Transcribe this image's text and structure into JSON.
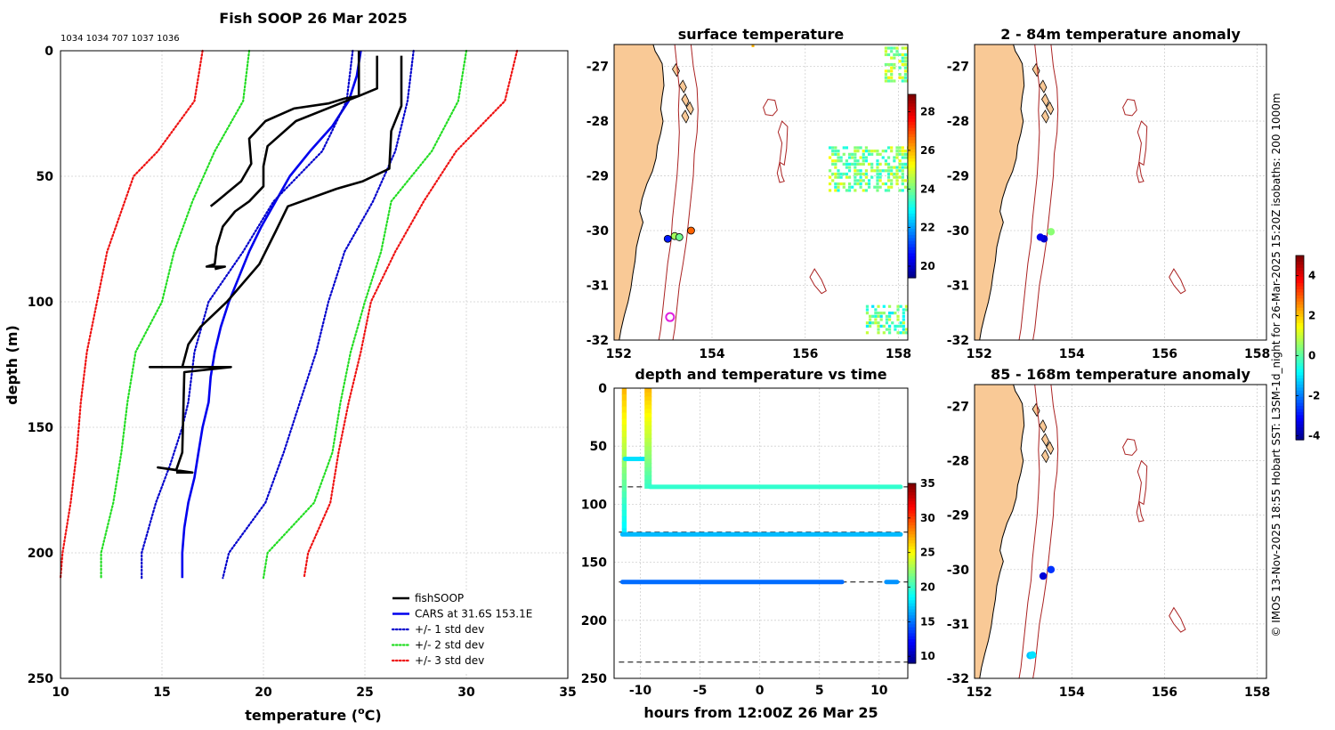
{
  "colors": {
    "fishsoop": "#000000",
    "cars": "#0000ee",
    "std1": "#0000cc",
    "std2": "#22dd22",
    "std3": "#ee1111",
    "land": "#f9c996",
    "contour": "#aa2222",
    "grid": "#d0d0d0"
  },
  "chart_data": [
    {
      "type": "line",
      "title": "Fish SOOP 26 Mar 2025",
      "subtitle": "1034 1034 707 1037 1036",
      "xlabel": "temperature (",
      "xlabel_sup": "o",
      "xlabel_end": "C)",
      "ylabel": "depth (m)",
      "xlim": [
        10,
        35
      ],
      "ylim": [
        250,
        0
      ],
      "xticks": [
        "10",
        "15",
        "20",
        "25",
        "30",
        "35"
      ],
      "yticks": [
        "0",
        "50",
        "100",
        "150",
        "200",
        "250"
      ],
      "legend": [
        "fishSOOP",
        "CARS at 31.6S 153.1E",
        "+/- 1 std dev",
        "+/- 2 std dev",
        "+/- 3 std dev"
      ],
      "legend_position": "bottom-right",
      "series": [
        {
          "name": "CARS mean",
          "style": "solid",
          "color": "cars",
          "points": [
            [
              24.8,
              0
            ],
            [
              24.6,
              10
            ],
            [
              24.2,
              20
            ],
            [
              23.4,
              30
            ],
            [
              22.3,
              40
            ],
            [
              21.3,
              50
            ],
            [
              20.6,
              60
            ],
            [
              19.9,
              70
            ],
            [
              19.3,
              80
            ],
            [
              18.8,
              90
            ],
            [
              18.3,
              100
            ],
            [
              17.9,
              110
            ],
            [
              17.6,
              120
            ],
            [
              17.4,
              130
            ],
            [
              17.3,
              140
            ],
            [
              17.0,
              150
            ],
            [
              16.8,
              160
            ],
            [
              16.6,
              170
            ],
            [
              16.3,
              180
            ],
            [
              16.1,
              190
            ],
            [
              16.0,
              200
            ],
            [
              16.0,
              210
            ]
          ]
        },
        {
          "name": "+1 std",
          "style": "dotted",
          "color": "std1",
          "points": [
            [
              27.4,
              0
            ],
            [
              27.1,
              20
            ],
            [
              26.5,
              40
            ],
            [
              25.4,
              60
            ],
            [
              24.0,
              80
            ],
            [
              23.2,
              100
            ],
            [
              22.6,
              120
            ],
            [
              21.8,
              140
            ],
            [
              21.0,
              160
            ],
            [
              20.1,
              180
            ],
            [
              18.3,
              200
            ],
            [
              18.0,
              210
            ]
          ]
        },
        {
          "name": "-1 std",
          "style": "dotted",
          "color": "std1",
          "points": [
            [
              24.4,
              0
            ],
            [
              24.1,
              20
            ],
            [
              22.9,
              40
            ],
            [
              20.5,
              60
            ],
            [
              19.0,
              80
            ],
            [
              17.3,
              100
            ],
            [
              16.6,
              120
            ],
            [
              16.3,
              140
            ],
            [
              16.0,
              150
            ],
            [
              15.4,
              165
            ],
            [
              14.7,
              180
            ],
            [
              14.0,
              200
            ],
            [
              14.0,
              210
            ]
          ]
        },
        {
          "name": "+2 std",
          "style": "dotted",
          "color": "std2",
          "points": [
            [
              30.0,
              0
            ],
            [
              29.6,
              20
            ],
            [
              28.3,
              40
            ],
            [
              26.3,
              60
            ],
            [
              25.8,
              80
            ],
            [
              25.0,
              100
            ],
            [
              24.3,
              120
            ],
            [
              23.8,
              140
            ],
            [
              23.4,
              160
            ],
            [
              22.5,
              180
            ],
            [
              20.2,
              200
            ],
            [
              20.0,
              210
            ]
          ]
        },
        {
          "name": "-2 std",
          "style": "dotted",
          "color": "std2",
          "points": [
            [
              19.3,
              0
            ],
            [
              19.0,
              20
            ],
            [
              17.6,
              40
            ],
            [
              16.5,
              60
            ],
            [
              15.6,
              80
            ],
            [
              15.0,
              100
            ],
            [
              13.7,
              120
            ],
            [
              13.3,
              140
            ],
            [
              13.0,
              160
            ],
            [
              12.6,
              180
            ],
            [
              12.0,
              200
            ],
            [
              12.0,
              210
            ]
          ]
        },
        {
          "name": "+3 std",
          "style": "dotted",
          "color": "std3",
          "points": [
            [
              32.5,
              0
            ],
            [
              31.9,
              20
            ],
            [
              29.5,
              40
            ],
            [
              27.9,
              60
            ],
            [
              26.5,
              80
            ],
            [
              25.3,
              100
            ],
            [
              24.8,
              120
            ],
            [
              24.2,
              140
            ],
            [
              23.7,
              160
            ],
            [
              23.3,
              180
            ],
            [
              22.2,
              200
            ],
            [
              22.0,
              210
            ]
          ]
        },
        {
          "name": "-3 std",
          "style": "dotted",
          "color": "std3",
          "points": [
            [
              17.0,
              0
            ],
            [
              16.6,
              20
            ],
            [
              14.8,
              40
            ],
            [
              13.6,
              50
            ],
            [
              12.3,
              80
            ],
            [
              11.8,
              100
            ],
            [
              11.3,
              120
            ],
            [
              11.0,
              140
            ],
            [
              10.8,
              160
            ],
            [
              10.5,
              180
            ],
            [
              10.1,
              200
            ],
            [
              10.0,
              210
            ]
          ]
        },
        {
          "name": "fishSOOP profile 1",
          "style": "solid",
          "color": "fishsoop",
          "points": [
            [
              24.7,
              0
            ],
            [
              24.7,
              18
            ],
            [
              24.0,
              19
            ],
            [
              23.2,
              21
            ],
            [
              21.5,
              23
            ],
            [
              20.1,
              28
            ],
            [
              19.3,
              35
            ],
            [
              19.4,
              45
            ],
            [
              18.9,
              52
            ],
            [
              17.7,
              60
            ],
            [
              17.4,
              62
            ]
          ]
        },
        {
          "name": "fishSOOP profile 2",
          "style": "solid",
          "color": "fishsoop",
          "points": [
            [
              25.6,
              2
            ],
            [
              25.6,
              15
            ],
            [
              24.7,
              18
            ],
            [
              21.6,
              28
            ],
            [
              20.2,
              38
            ],
            [
              20.0,
              46
            ],
            [
              20.0,
              54
            ],
            [
              19.3,
              60
            ],
            [
              18.6,
              64
            ],
            [
              18.0,
              70
            ],
            [
              17.7,
              78
            ],
            [
              17.6,
              85
            ],
            [
              17.2,
              86
            ],
            [
              18.1,
              86
            ],
            [
              17.6,
              87
            ]
          ]
        },
        {
          "name": "fishSOOP profile 3",
          "style": "solid",
          "color": "fishsoop",
          "points": [
            [
              26.8,
              2
            ],
            [
              26.8,
              22
            ],
            [
              26.3,
              32
            ],
            [
              26.2,
              47
            ],
            [
              24.9,
              52
            ],
            [
              23.6,
              55
            ],
            [
              21.2,
              62
            ],
            [
              20.6,
              72
            ],
            [
              19.8,
              85
            ],
            [
              18.2,
              100
            ],
            [
              16.9,
              110
            ],
            [
              16.3,
              117
            ],
            [
              16.0,
              126
            ],
            [
              14.4,
              126
            ],
            [
              18.4,
              126
            ],
            [
              16.1,
              128
            ],
            [
              16.0,
              160
            ],
            [
              15.7,
              167
            ],
            [
              14.8,
              166
            ],
            [
              16.5,
              168
            ],
            [
              15.7,
              168
            ]
          ]
        }
      ]
    },
    {
      "type": "heatmap",
      "title": "surface temperature",
      "xticks": [
        "152",
        "154",
        "156",
        "158"
      ],
      "yticks": [
        "-27",
        "-28",
        "-29",
        "-30",
        "-31",
        "-32"
      ],
      "xlim": [
        151.9,
        158.2
      ],
      "ylim": [
        -32.0,
        -26.6
      ],
      "colorbar_ticks": [
        "20",
        "22",
        "24",
        "26",
        "28"
      ],
      "colorbar_range": [
        19.4,
        28.9
      ],
      "points": [
        {
          "lon": 153.2,
          "lat": -30.1,
          "value": 24.5
        },
        {
          "lon": 153.3,
          "lat": -30.12,
          "value": 24.0
        },
        {
          "lon": 153.55,
          "lat": -30.0,
          "value": 26.8
        },
        {
          "lon": 153.05,
          "lat": -30.15,
          "value": 20.8
        },
        {
          "lon": 153.1,
          "lat": -31.58,
          "value": 0,
          "marker": "magenta ring"
        }
      ],
      "sst_patches": [
        {
          "lon": [
            157.7,
            158.2
          ],
          "lat": [
            -27.3,
            -26.7
          ],
          "value": 24.5
        },
        {
          "lon": [
            156.5,
            158.2
          ],
          "lat": [
            -29.3,
            -28.5
          ],
          "value": 24.2
        },
        {
          "lon": [
            157.3,
            158.2
          ],
          "lat": [
            -31.9,
            -31.4
          ],
          "value": 23.8
        }
      ]
    },
    {
      "type": "scatter",
      "title": "2 - 84m temperature anomaly",
      "xticks": [
        "152",
        "154",
        "156",
        "158"
      ],
      "yticks": [
        "-27",
        "-28",
        "-29",
        "-30",
        "-31",
        "-32"
      ],
      "xlim": [
        151.9,
        158.2
      ],
      "ylim": [
        -32.0,
        -26.6
      ],
      "points": [
        {
          "lon": 153.4,
          "lat": -30.15,
          "value": -3.5
        },
        {
          "lon": 153.32,
          "lat": -30.12,
          "value": -3.2
        },
        {
          "lon": 153.55,
          "lat": -30.02,
          "value": 0.5
        }
      ]
    },
    {
      "type": "scatter",
      "title": "85 - 168m temperature anomaly",
      "xticks": [
        "152",
        "154",
        "156",
        "158"
      ],
      "yticks": [
        "-27",
        "-28",
        "-29",
        "-30",
        "-31",
        "-32"
      ],
      "xlim": [
        151.9,
        158.2
      ],
      "ylim": [
        -32.0,
        -26.6
      ],
      "points": [
        {
          "lon": 153.38,
          "lat": -30.12,
          "value": -3.4
        },
        {
          "lon": 153.55,
          "lat": -30.0,
          "value": -2.6
        },
        {
          "lon": 153.1,
          "lat": -31.58,
          "value": -1.3
        },
        {
          "lon": 153.15,
          "lat": -31.57,
          "value": -1.0
        }
      ],
      "colorbar_ticks": [
        "4",
        "2",
        "0",
        "-2",
        "-4"
      ],
      "colorbar_range": [
        -4.2,
        5.0
      ]
    },
    {
      "type": "scatter",
      "title": "depth and temperature vs time",
      "xlabel": "hours from 12:00Z 26 Mar 25",
      "xlim": [
        -12.2,
        12.4
      ],
      "ylim": [
        250,
        0
      ],
      "xticks": [
        "-10",
        "-5",
        "0",
        "5",
        "10"
      ],
      "yticks": [
        "0",
        "50",
        "100",
        "150",
        "200",
        "250"
      ],
      "colorbar_ticks": [
        "35",
        "30",
        "25",
        "20",
        "15",
        "10"
      ],
      "colorbar_range": [
        9,
        35
      ],
      "reference_depths": [
        85,
        124,
        167,
        236
      ],
      "tracks": [
        {
          "t0": -11.4,
          "t1": -11.3,
          "d0": 0,
          "d1": 126,
          "temp_top": 27,
          "temp_bottom": 18,
          "vertical": true
        },
        {
          "t0": -11.3,
          "t1": -9.5,
          "d0": 61,
          "d1": 61,
          "temp": 18
        },
        {
          "t0": -9.5,
          "t1": -9.2,
          "d0": 0,
          "d1": 86,
          "temp_top": 27,
          "temp_bottom": 20,
          "vertical": true
        },
        {
          "t0": -9.2,
          "t1": 11.8,
          "d0": 85,
          "d1": 85,
          "temp": 20
        },
        {
          "t0": -11.5,
          "t1": 11.8,
          "d0": 126,
          "d1": 126,
          "temp": 17
        },
        {
          "t0": -11.5,
          "t1": 6.9,
          "d0": 167,
          "d1": 167,
          "temp": 15
        },
        {
          "t0": 10.6,
          "t1": 11.5,
          "d0": 167,
          "d1": 167,
          "temp": 16
        }
      ]
    }
  ],
  "side_note": "© IMOS 13-Nov-2025 18:55 Hobart SST: L3SM-1d_night for 26-Mar-2025 15:20Z isobaths: 200  1000m"
}
